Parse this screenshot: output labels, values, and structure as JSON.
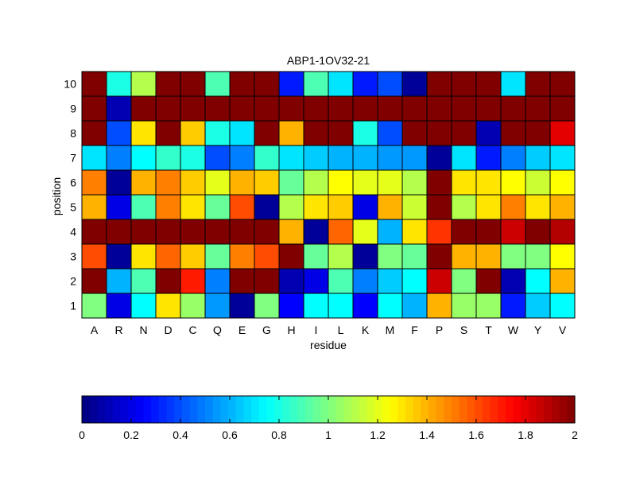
{
  "chart_data": [
    {
      "type": "heatmap",
      "title": "ABP1-1OV32-21",
      "xlabel": "residue",
      "ylabel": "position",
      "x_categories": [
        "A",
        "R",
        "N",
        "D",
        "C",
        "Q",
        "E",
        "G",
        "H",
        "I",
        "L",
        "K",
        "M",
        "F",
        "P",
        "S",
        "T",
        "W",
        "Y",
        "V"
      ],
      "y_categories": [
        "10",
        "9",
        "8",
        "7",
        "6",
        "5",
        "4",
        "3",
        "2",
        "1"
      ],
      "values": [
        [
          2.0,
          0.8,
          1.1,
          2.0,
          2.0,
          0.9,
          2.0,
          2.0,
          0.3,
          0.9,
          0.7,
          0.3,
          0.4,
          0.05,
          2.0,
          2.0,
          2.0,
          0.7,
          2.0,
          2.0
        ],
        [
          2.0,
          0.1,
          2.0,
          2.0,
          2.0,
          2.0,
          2.0,
          2.0,
          2.0,
          2.0,
          2.0,
          2.0,
          2.0,
          2.0,
          2.0,
          2.0,
          2.0,
          2.0,
          2.0,
          2.0
        ],
        [
          2.0,
          0.4,
          1.3,
          2.0,
          1.35,
          0.8,
          0.7,
          2.0,
          1.4,
          2.0,
          2.0,
          0.8,
          0.4,
          2.0,
          2.0,
          2.0,
          0.1,
          2.0,
          2.0,
          1.8
        ],
        [
          0.7,
          0.5,
          0.75,
          0.85,
          0.8,
          0.4,
          0.5,
          0.85,
          0.7,
          0.65,
          0.6,
          0.6,
          0.55,
          0.55,
          0.05,
          0.7,
          0.3,
          0.5,
          0.65,
          0.7
        ],
        [
          1.5,
          0.05,
          1.4,
          1.5,
          1.35,
          1.2,
          1.4,
          1.35,
          0.95,
          1.1,
          1.25,
          1.2,
          1.2,
          1.1,
          2.0,
          1.3,
          1.3,
          1.25,
          1.15,
          1.25
        ],
        [
          1.4,
          0.2,
          0.9,
          1.5,
          1.3,
          0.95,
          1.6,
          0.05,
          1.1,
          1.3,
          1.35,
          0.2,
          1.4,
          1.15,
          2.0,
          1.1,
          1.3,
          1.5,
          1.3,
          1.4
        ],
        [
          2.0,
          2.0,
          2.0,
          2.0,
          2.0,
          2.0,
          2.0,
          2.0,
          1.4,
          0.05,
          1.55,
          1.2,
          0.6,
          1.3,
          1.65,
          2.0,
          2.0,
          1.85,
          2.0,
          1.9
        ],
        [
          1.6,
          0.05,
          1.3,
          1.55,
          1.35,
          0.95,
          1.5,
          1.6,
          2.0,
          0.95,
          1.1,
          0.05,
          1.0,
          0.95,
          2.0,
          1.4,
          1.4,
          1.0,
          1.0,
          1.25
        ],
        [
          2.0,
          0.6,
          0.9,
          2.0,
          1.7,
          0.5,
          2.0,
          2.0,
          0.1,
          0.2,
          0.9,
          0.5,
          0.65,
          0.75,
          1.85,
          1.0,
          2.0,
          0.1,
          0.75,
          1.4
        ],
        [
          1.0,
          0.2,
          0.75,
          1.3,
          1.05,
          0.55,
          0.05,
          1.0,
          0.25,
          0.75,
          0.75,
          0.25,
          0.75,
          0.6,
          1.4,
          1.05,
          1.05,
          0.3,
          0.65,
          0.75
        ]
      ],
      "colormap": "jet",
      "cell_border_color": "#000000"
    },
    {
      "type": "colorbar",
      "range": [
        0,
        2
      ],
      "ticks": [
        "0",
        "0.2",
        "0.4",
        "0.6",
        "0.8",
        "1",
        "1.2",
        "1.4",
        "1.6",
        "1.8",
        "2"
      ],
      "colormap": "jet"
    }
  ]
}
